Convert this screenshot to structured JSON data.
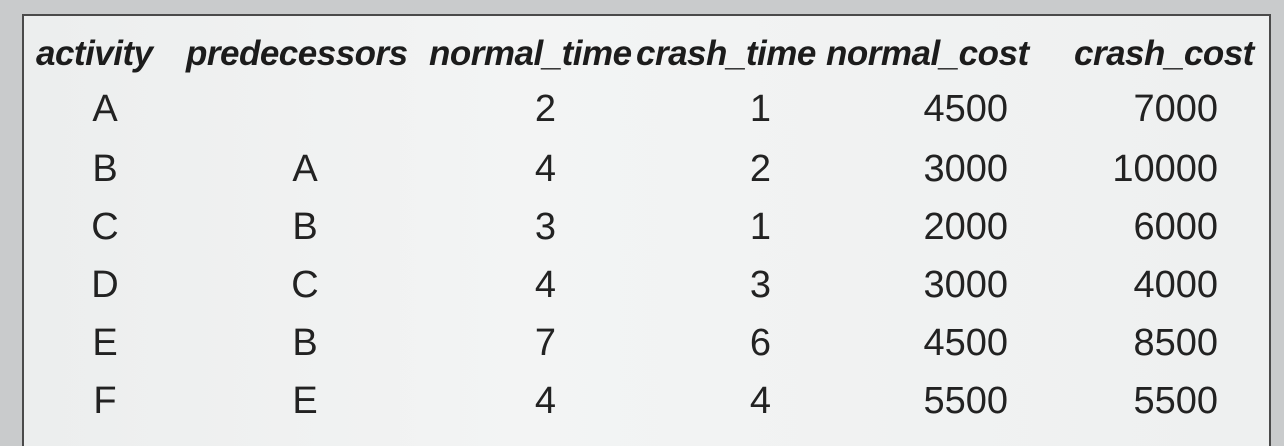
{
  "table": {
    "headers": [
      "activity",
      "predecessors",
      "normal_time",
      "crash_time",
      "normal_cost",
      "crash_cost"
    ],
    "rows": [
      [
        "A",
        "",
        "2",
        "1",
        "4500",
        "7000"
      ],
      [
        "B",
        "A",
        "4",
        "2",
        "3000",
        "10000"
      ],
      [
        "C",
        "B",
        "3",
        "1",
        "2000",
        "6000"
      ],
      [
        "D",
        "C",
        "4",
        "3",
        "3000",
        "4000"
      ],
      [
        "E",
        "B",
        "7",
        "6",
        "4500",
        "8500"
      ],
      [
        "F",
        "E",
        "4",
        "4",
        "5500",
        "5500"
      ]
    ]
  }
}
